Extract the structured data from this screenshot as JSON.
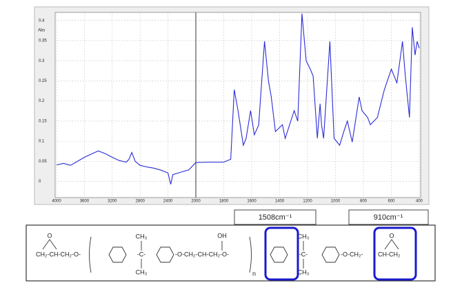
{
  "chart_data": {
    "type": "line",
    "y_label": "Abs",
    "xlim": [
      4000,
      400
    ],
    "xbreak": 2000,
    "xticks": [
      4000,
      3600,
      3200,
      2800,
      2400,
      2000,
      1800,
      1600,
      1400,
      1200,
      1000,
      800,
      600,
      400
    ],
    "ylim": [
      -0.04,
      0.42
    ],
    "yticks": [
      0,
      0.05,
      0.1,
      0.15,
      0.2,
      0.25,
      0.3,
      0.35,
      0.4
    ],
    "grid": true,
    "x": [
      4000,
      3900,
      3800,
      3700,
      3600,
      3500,
      3400,
      3300,
      3200,
      3100,
      3000,
      2960,
      2920,
      2870,
      2800,
      2700,
      2600,
      2500,
      2400,
      2360,
      2330,
      2200,
      2100,
      2000,
      1900,
      1800,
      1750,
      1725,
      1700,
      1660,
      1640,
      1608,
      1581,
      1550,
      1508,
      1480,
      1460,
      1430,
      1380,
      1360,
      1296,
      1270,
      1240,
      1210,
      1180,
      1160,
      1130,
      1110,
      1100,
      1085,
      1040,
      1010,
      970,
      940,
      915,
      880,
      830,
      810,
      770,
      750,
      700,
      650,
      600,
      560,
      520,
      500,
      470,
      450,
      430,
      415,
      400
    ],
    "series": [
      {
        "color": "#2a2ad8",
        "values": [
          0.041,
          0.045,
          0.04,
          0.05,
          0.06,
          0.068,
          0.076,
          0.069,
          0.06,
          0.052,
          0.048,
          0.055,
          0.072,
          0.05,
          0.04,
          0.036,
          0.033,
          0.028,
          0.021,
          -0.007,
          0.017,
          0.024,
          0.029,
          0.047,
          0.048,
          0.048,
          0.055,
          0.228,
          0.18,
          0.09,
          0.107,
          0.176,
          0.116,
          0.14,
          0.348,
          0.25,
          0.21,
          0.124,
          0.141,
          0.107,
          0.176,
          0.15,
          0.417,
          0.3,
          0.279,
          0.262,
          0.107,
          0.193,
          0.141,
          0.107,
          0.348,
          0.107,
          0.09,
          0.124,
          0.15,
          0.098,
          0.21,
          0.176,
          0.159,
          0.141,
          0.159,
          0.228,
          0.279,
          0.245,
          0.348,
          0.262,
          0.159,
          0.383,
          0.314,
          0.348,
          0.331
        ]
      }
    ],
    "annotations": [
      "1508cm⁻¹",
      "910cm⁻¹"
    ]
  },
  "structure": {
    "texts": [
      "CH₂-CH-CH₂-O-",
      "O",
      "",
      "CH₃",
      "-C-",
      "CH₃",
      "-O-CH₂-CH-CH₂-O-",
      "OH",
      "n",
      "",
      "CH₃",
      "-C-",
      "CH₃",
      "-O-CH₂-",
      "O",
      "CH-CH₂"
    ]
  }
}
